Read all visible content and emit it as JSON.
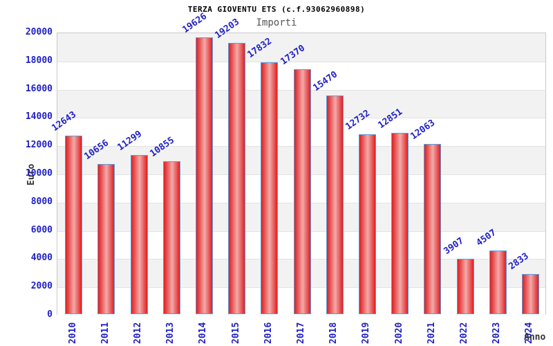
{
  "chart_data": {
    "type": "bar",
    "title": "TERZA GIOVENTU ETS (c.f.93062960898)",
    "subtitle": "Importi",
    "xlabel": "Anno",
    "ylabel": "Euro",
    "categories": [
      "2010",
      "2011",
      "2012",
      "2013",
      "2014",
      "2015",
      "2016",
      "2017",
      "2018",
      "2019",
      "2020",
      "2021",
      "2022",
      "2023",
      "2024"
    ],
    "values": [
      12643,
      10656,
      11299,
      10855,
      19626,
      19203,
      17832,
      17370,
      15470,
      12732,
      12851,
      12063,
      3907,
      4507,
      2833
    ],
    "ylim": [
      0,
      20000
    ],
    "ytick_step": 2000,
    "grid": true,
    "legend_position": "none",
    "band_fill_alternating": true,
    "colors": {
      "bar_fill_edge": "#e11f1f",
      "bar_fill_center": "#f3aaaa",
      "bar_border": "#5b9ee0",
      "tick_and_value_text": "#2020c8",
      "band_alt": "#f2f2f2",
      "band_main": "#ffffff",
      "plot_border": "#c9c9c9",
      "title_text": "#000000",
      "subtitle_text": "#555555",
      "axis_title_text": "#333333"
    }
  }
}
